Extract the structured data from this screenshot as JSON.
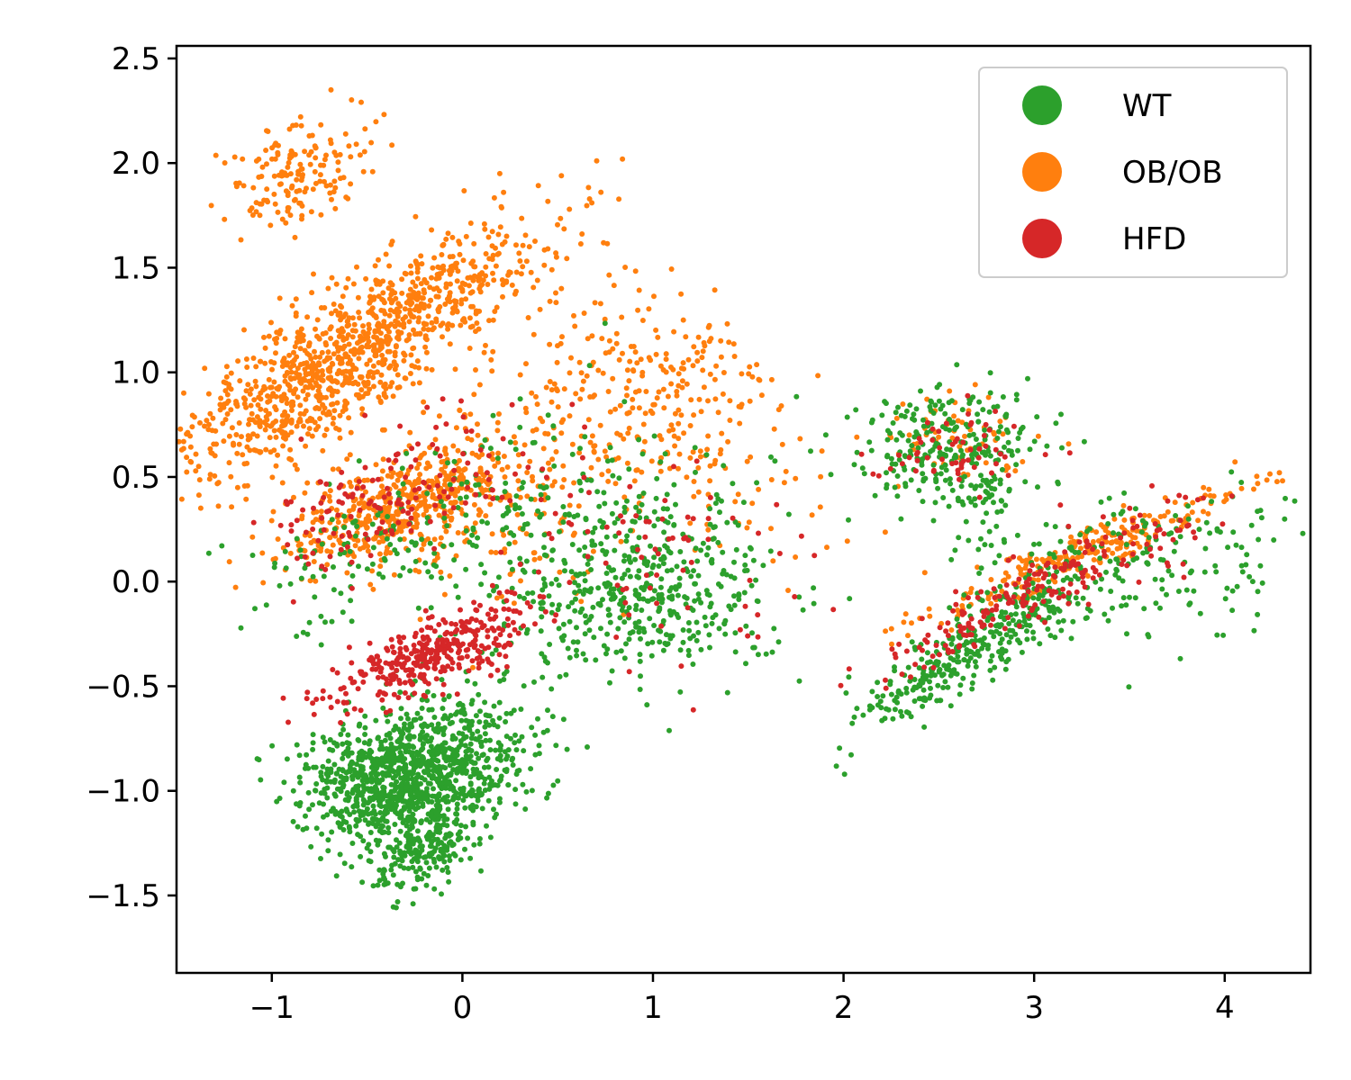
{
  "chart_data": {
    "type": "scatter",
    "title": "",
    "xlabel": "",
    "ylabel": "",
    "xlim": [
      -1.5,
      4.45
    ],
    "ylim": [
      -1.87,
      2.56
    ],
    "xticks": [
      -1,
      0,
      1,
      2,
      3,
      4
    ],
    "yticks": [
      -1.5,
      -1.0,
      -0.5,
      0.0,
      0.5,
      1.0,
      1.5,
      2.0,
      2.5
    ],
    "xtick_labels": [
      "−1",
      "0",
      "1",
      "2",
      "3",
      "4"
    ],
    "ytick_labels": [
      "−1.5",
      "−1.0",
      "−0.5",
      "0.0",
      "0.5",
      "1.0",
      "1.5",
      "2.0",
      "2.5"
    ],
    "grid": false,
    "legend_position": "top-right",
    "draw_order": [
      "OB/OB",
      "WT",
      "HFD"
    ],
    "series": [
      {
        "name": "WT",
        "color": "#2ca02c",
        "clusters": [
          {
            "center": [
              -0.2,
              -0.9
            ],
            "spread": [
              0.15,
              0.28
            ],
            "count": 900,
            "angle": -70
          },
          {
            "center": [
              -0.45,
              -0.95
            ],
            "spread": [
              0.22,
              0.12
            ],
            "count": 250,
            "angle": 0
          },
          {
            "center": [
              -0.2,
              -1.3
            ],
            "spread": [
              0.08,
              0.15
            ],
            "count": 180,
            "angle": -70
          },
          {
            "center": [
              -0.35,
              0.2
            ],
            "spread": [
              0.18,
              0.35
            ],
            "count": 150,
            "angle": -70
          },
          {
            "center": [
              0.95,
              -0.1
            ],
            "spread": [
              0.35,
              0.18
            ],
            "count": 320,
            "angle": 0
          },
          {
            "center": [
              0.9,
              0.25
            ],
            "spread": [
              0.35,
              0.25
            ],
            "count": 180,
            "angle": 0
          },
          {
            "center": [
              2.55,
              0.65
            ],
            "spread": [
              0.25,
              0.15
            ],
            "count": 220,
            "angle": 10
          },
          {
            "center": [
              2.7,
              0.45
            ],
            "spread": [
              0.15,
              0.15
            ],
            "count": 80,
            "angle": 0
          },
          {
            "center": [
              2.7,
              -0.3
            ],
            "spread": [
              0.35,
              0.08
            ],
            "count": 320,
            "angle": 30
          },
          {
            "center": [
              3.5,
              0.05
            ],
            "spread": [
              0.45,
              0.18
            ],
            "count": 200,
            "angle": 15
          },
          {
            "center": [
              0.3,
              0.15
            ],
            "spread": [
              0.35,
              0.35
            ],
            "count": 80,
            "angle": 0
          }
        ]
      },
      {
        "name": "OB/OB",
        "color": "#ff7f0e",
        "clusters": [
          {
            "center": [
              -0.55,
              1.1
            ],
            "spread": [
              0.15,
              0.55
            ],
            "count": 1100,
            "angle": -60
          },
          {
            "center": [
              -0.85,
              1.95
            ],
            "spread": [
              0.12,
              0.2
            ],
            "count": 160,
            "angle": -60
          },
          {
            "center": [
              -0.35,
              0.35
            ],
            "spread": [
              0.12,
              0.3
            ],
            "count": 450,
            "angle": -70
          },
          {
            "center": [
              0.95,
              0.85
            ],
            "spread": [
              0.35,
              0.3
            ],
            "count": 280,
            "angle": 0
          },
          {
            "center": [
              0.2,
              0.4
            ],
            "spread": [
              0.3,
              0.25
            ],
            "count": 150,
            "angle": 0
          },
          {
            "center": [
              3.3,
              0.15
            ],
            "spread": [
              0.45,
              0.05
            ],
            "count": 250,
            "angle": 20
          },
          {
            "center": [
              2.55,
              0.7
            ],
            "spread": [
              0.2,
              0.1
            ],
            "count": 60,
            "angle": 0
          },
          {
            "center": [
              1.6,
              0.5
            ],
            "spread": [
              0.35,
              0.3
            ],
            "count": 40,
            "angle": 0
          }
        ]
      },
      {
        "name": "HFD",
        "color": "#d62728",
        "clusters": [
          {
            "center": [
              -0.18,
              -0.35
            ],
            "spread": [
              0.08,
              0.3
            ],
            "count": 350,
            "angle": -70
          },
          {
            "center": [
              -0.45,
              0.4
            ],
            "spread": [
              0.15,
              0.35
            ],
            "count": 150,
            "angle": -70
          },
          {
            "center": [
              0.9,
              0.15
            ],
            "spread": [
              0.4,
              0.3
            ],
            "count": 80,
            "angle": 0
          },
          {
            "center": [
              2.6,
              0.65
            ],
            "spread": [
              0.2,
              0.1
            ],
            "count": 60,
            "angle": 0
          },
          {
            "center": [
              2.9,
              -0.1
            ],
            "spread": [
              0.45,
              0.06
            ],
            "count": 160,
            "angle": 25
          },
          {
            "center": [
              3.5,
              0.2
            ],
            "spread": [
              0.3,
              0.12
            ],
            "count": 50,
            "angle": 20
          }
        ]
      }
    ]
  }
}
